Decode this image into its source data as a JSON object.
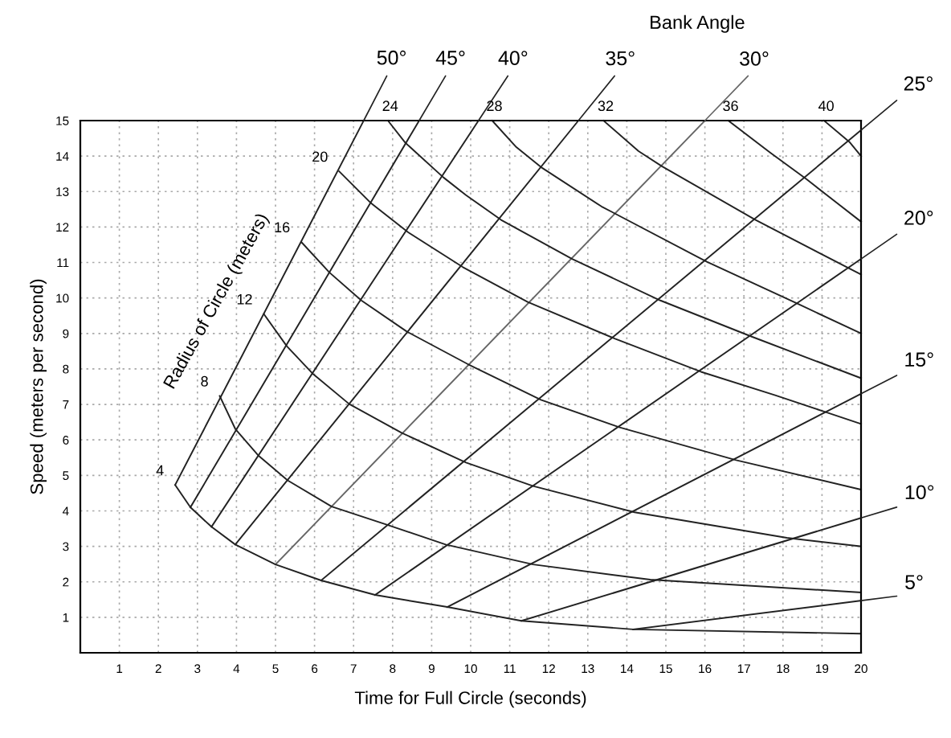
{
  "chart_data": {
    "type": "line",
    "title": "Bank Angle",
    "xlabel": "Time for Full Circle (seconds)",
    "ylabel": "Speed (meters per second)",
    "annotations": [
      "Radius of Circle (meters)"
    ],
    "xlim": [
      0,
      20
    ],
    "ylim": [
      0,
      15
    ],
    "xticks": [
      1,
      2,
      3,
      4,
      5,
      6,
      7,
      8,
      9,
      10,
      11,
      12,
      13,
      14,
      15,
      16,
      17,
      18,
      19,
      20
    ],
    "yticks": [
      1,
      2,
      3,
      4,
      5,
      6,
      7,
      8,
      9,
      10,
      11,
      12,
      13,
      14,
      15
    ],
    "grid": true,
    "legend": false,
    "marker": "none",
    "line_style": "solid",
    "series": [
      {
        "name": "50°",
        "color": "#222222",
        "x": [
          2.43,
          7.26
        ],
        "values": [
          4.73,
          15
        ]
      },
      {
        "name": "45°",
        "color": "#222222",
        "x": [
          2.82,
          8.68
        ],
        "values": [
          4.1,
          15
        ]
      },
      {
        "name": "40°",
        "color": "#222222",
        "x": [
          3.36,
          10.2
        ],
        "values": [
          3.55,
          15
        ]
      },
      {
        "name": "35°",
        "color": "#222222",
        "x": [
          3.97,
          12.76
        ],
        "values": [
          3.05,
          15
        ]
      },
      {
        "name": "30°",
        "color": "#666666",
        "x": [
          5.0,
          16.0
        ],
        "values": [
          2.49,
          15
        ]
      },
      {
        "name": "25°",
        "color": "#222222",
        "x": [
          6.17,
          20
        ],
        "values": [
          2.04,
          14.73
        ]
      },
      {
        "name": "20°",
        "color": "#222222",
        "x": [
          7.55,
          20
        ],
        "values": [
          1.63,
          11.1
        ]
      },
      {
        "name": "15°",
        "color": "#222222",
        "x": [
          9.4,
          20
        ],
        "values": [
          1.29,
          7.3
        ]
      },
      {
        "name": "10°",
        "color": "#222222",
        "x": [
          11.3,
          20
        ],
        "values": [
          0.9,
          3.8
        ]
      },
      {
        "name": "5°",
        "color": "#222222",
        "x": [
          14.16,
          20
        ],
        "values": [
          0.66,
          1.47
        ]
      },
      {
        "name": "4",
        "color": "#222222",
        "x": [
          2.43,
          2.82,
          3.36,
          3.97,
          5.0,
          6.17,
          7.55,
          9.4,
          11.3,
          14.16,
          20
        ],
        "values": [
          4.73,
          4.1,
          3.55,
          3.05,
          2.49,
          2.04,
          1.63,
          1.29,
          0.9,
          0.66,
          0.54
        ]
      },
      {
        "name": "8",
        "color": "#222222",
        "x": [
          3.57,
          3.97,
          4.57,
          5.31,
          6.44,
          7.88,
          9.36,
          11.6,
          14.6,
          20
        ],
        "values": [
          7.24,
          6.31,
          5.55,
          4.86,
          4.12,
          3.6,
          3.05,
          2.49,
          2.06,
          1.7
        ]
      },
      {
        "name": "12",
        "color": "#222222",
        "x": [
          4.7,
          5.29,
          5.97,
          6.89,
          8.23,
          9.88,
          11.6,
          14.2,
          18.1,
          20
        ],
        "values": [
          9.55,
          8.64,
          7.85,
          7.01,
          6.2,
          5.36,
          4.7,
          3.96,
          3.24,
          3.0
        ]
      },
      {
        "name": "16",
        "color": "#222222",
        "x": [
          5.66,
          6.38,
          7.2,
          8.37,
          9.92,
          11.8,
          13.8,
          16.8,
          20
        ],
        "values": [
          11.58,
          10.72,
          9.93,
          9.05,
          8.14,
          7.13,
          6.36,
          5.43,
          4.6
        ]
      },
      {
        "name": "20",
        "color": "#222222",
        "x": [
          6.63,
          7.45,
          8.4,
          9.8,
          11.46,
          13.7,
          15.9,
          17.8,
          19.05,
          20
        ],
        "values": [
          13.57,
          12.67,
          11.85,
          10.87,
          9.89,
          8.85,
          7.92,
          7.26,
          6.8,
          6.45
        ]
      },
      {
        "name": "24",
        "color": "#222222",
        "x": [
          7.88,
          8.33,
          9.3,
          9.88,
          10.78,
          12.6,
          14.86,
          17.2,
          20
        ],
        "values": [
          15,
          14.37,
          13.4,
          12.9,
          12.2,
          11.1,
          9.93,
          8.91,
          7.74
        ]
      },
      {
        "name": "28",
        "color": "#222222",
        "x": [
          10.55,
          11.17,
          11.8,
          13.35,
          16.05,
          18.37,
          20
        ],
        "values": [
          15,
          14.25,
          13.69,
          12.58,
          11.02,
          9.84,
          9.0
        ]
      },
      {
        "name": "32",
        "color": "#222222",
        "x": [
          13.4,
          14.3,
          14.9,
          17.3,
          20
        ],
        "values": [
          15,
          14.14,
          13.71,
          12.2,
          10.66
        ]
      },
      {
        "name": "36",
        "color": "#222222",
        "x": [
          16.6,
          17.67,
          18.6,
          20
        ],
        "values": [
          15,
          14.1,
          13.35,
          12.15
        ]
      },
      {
        "name": "40",
        "color": "#222222",
        "x": [
          19.05,
          19.7,
          20
        ],
        "values": [
          15,
          14.4,
          14.0
        ]
      }
    ]
  }
}
